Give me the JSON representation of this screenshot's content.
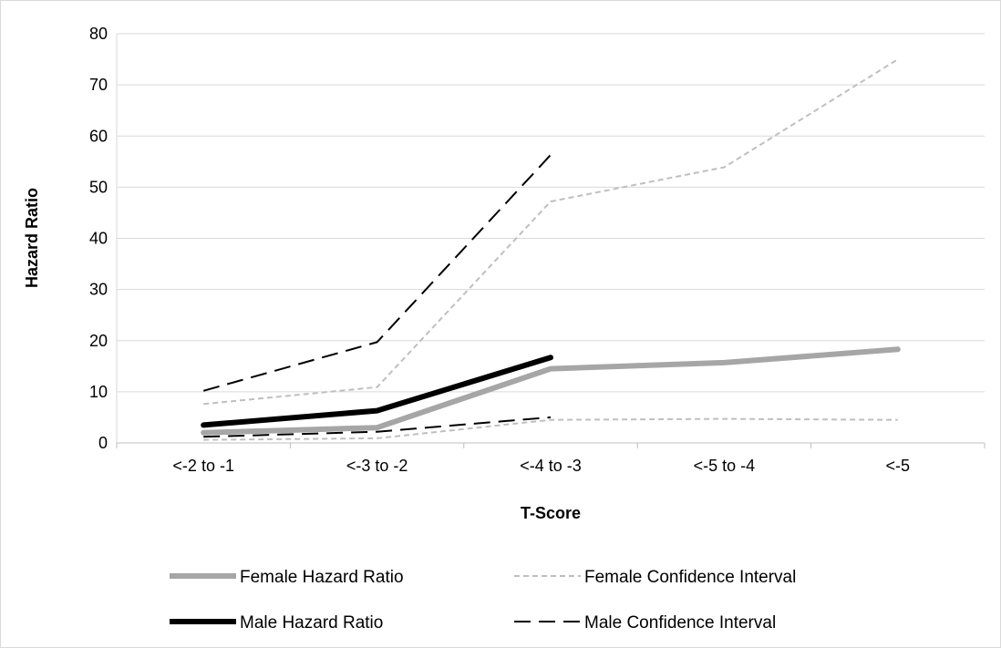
{
  "chart_data": {
    "type": "line",
    "xlabel": "T-Score",
    "ylabel": "Hazard Ratio",
    "ylim": [
      0,
      80
    ],
    "ytick_step": 10,
    "grid": true,
    "legend_position": "bottom",
    "categories": [
      "<-2 to -1",
      "<-3 to -2",
      "<-4 to -3",
      "<-5 to -4",
      "<-5"
    ],
    "series": [
      {
        "name": "Female Hazard Ratio",
        "values": [
          2.0,
          3.0,
          14.5,
          15.7,
          18.3
        ],
        "color": "#a6a6a6",
        "style": "solid-thick"
      },
      {
        "name": "Female Confidence Interval",
        "values": [
          7.6,
          10.9,
          47.2,
          53.9,
          75.0
        ],
        "color": "#bfbfbf",
        "style": "dashed-short"
      },
      {
        "name": "Female Confidence Interval",
        "values": [
          0.6,
          0.9,
          4.5,
          4.7,
          4.5
        ],
        "color": "#bfbfbf",
        "style": "dashed-short"
      },
      {
        "name": "Male Hazard Ratio",
        "values": [
          3.5,
          6.3,
          16.7,
          null,
          null
        ],
        "color": "#000000",
        "style": "solid-thick"
      },
      {
        "name": "Male Confidence Interval",
        "values": [
          10.2,
          19.7,
          56.3,
          null,
          null
        ],
        "color": "#000000",
        "style": "dashed-long"
      },
      {
        "name": "Male Confidence Interval",
        "values": [
          1.2,
          2.2,
          5.0,
          null,
          null
        ],
        "color": "#000000",
        "style": "dashed-long"
      }
    ],
    "legend": [
      {
        "label": "Female Hazard Ratio",
        "color": "#a6a6a6",
        "style": "solid-thick"
      },
      {
        "label": "Female Confidence Interval",
        "color": "#bfbfbf",
        "style": "dashed-short"
      },
      {
        "label": "Male Hazard Ratio",
        "color": "#000000",
        "style": "solid-thick"
      },
      {
        "label": "Male Confidence Interval",
        "color": "#000000",
        "style": "dashed-long"
      }
    ]
  }
}
